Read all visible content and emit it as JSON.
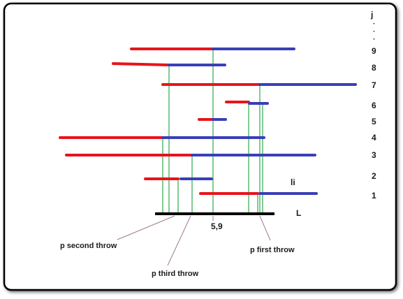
{
  "labels": {
    "j": "j",
    "dots": [
      "·",
      "·",
      "·"
    ],
    "row_numbers": [
      "9",
      "8",
      "7",
      "6",
      "5",
      "4",
      "3",
      "2",
      "1"
    ],
    "li": "li",
    "L": "L",
    "five_nine": "5,9",
    "p_second": "p second throw",
    "p_third": "p third throw",
    "p_first": "p first throw"
  },
  "colors": {
    "red": "#e8141c",
    "blue": "#3a3fb5",
    "green": "#5fbf7a",
    "pointer": "#9a7c8f",
    "base": "#000000"
  }
}
